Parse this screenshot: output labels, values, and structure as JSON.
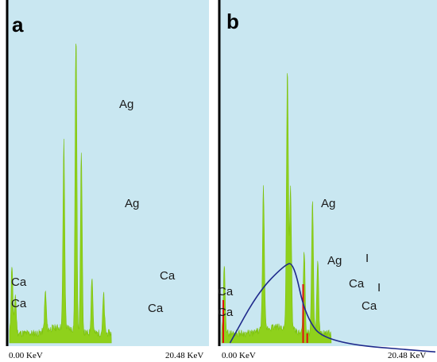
{
  "chart_data": [
    {
      "type": "area",
      "panel_label": "a",
      "x_min_label": "0.00 KeV",
      "x_max_label": "20.48 KeV",
      "xlim": [
        0,
        20.48
      ],
      "peak_labels": [
        {
          "text": "Ca",
          "energy": 3.69
        },
        {
          "text": "Ca",
          "energy": 4.01
        },
        {
          "text": "Ag",
          "energy": 2.98
        },
        {
          "text": "Ag",
          "energy": 3.15
        },
        {
          "text": "Ca",
          "energy": 3.69
        },
        {
          "text": "Ca",
          "energy": 4.01
        }
      ],
      "peaks": [
        {
          "energy": 0.25,
          "intensity": 0.23
        },
        {
          "energy": 0.6,
          "intensity": 0.13
        },
        {
          "energy": 3.7,
          "intensity": 0.13
        },
        {
          "energy": 5.6,
          "intensity": 0.62
        },
        {
          "energy": 6.85,
          "intensity": 1.0
        },
        {
          "energy": 7.4,
          "intensity": 0.6
        },
        {
          "energy": 8.5,
          "intensity": 0.19
        },
        {
          "energy": 9.7,
          "intensity": 0.13
        }
      ],
      "color": "#8fd11c"
    },
    {
      "type": "area",
      "panel_label": "b",
      "x_min_label": "0.00 KeV",
      "x_max_label": "20.48 KeV",
      "xlim": [
        0,
        20.48
      ],
      "peak_labels": [
        {
          "text": "Ca",
          "energy": 0.3
        },
        {
          "text": "Ca",
          "energy": 0.3
        },
        {
          "text": "Ag",
          "energy": 2.98
        },
        {
          "text": "Ag",
          "energy": 3.15
        },
        {
          "text": "Ca",
          "energy": 3.69
        },
        {
          "text": "I",
          "energy": 3.94
        },
        {
          "text": "I",
          "energy": 4.22
        },
        {
          "text": "Ca",
          "energy": 4.01
        }
      ],
      "peaks": [
        {
          "energy": 0.25,
          "intensity": 0.22
        },
        {
          "energy": 4.0,
          "intensity": 0.47
        },
        {
          "energy": 6.3,
          "intensity": 0.87
        },
        {
          "energy": 6.6,
          "intensity": 0.47
        },
        {
          "energy": 7.9,
          "intensity": 0.28
        },
        {
          "energy": 8.7,
          "intensity": 0.44
        },
        {
          "energy": 9.2,
          "intensity": 0.24
        }
      ],
      "background_curve": [
        {
          "energy": 0.8,
          "intensity": 0.0
        },
        {
          "energy": 3.5,
          "intensity": 0.17
        },
        {
          "energy": 6.0,
          "intensity": 0.26
        },
        {
          "energy": 6.9,
          "intensity": 0.27
        },
        {
          "energy": 8.0,
          "intensity": 0.09
        },
        {
          "energy": 10.0,
          "intensity": 0.0
        },
        {
          "energy": 20.48,
          "intensity": -0.03
        }
      ],
      "markers": [
        0.15,
        7.8,
        8.2
      ],
      "color": "#8fd11c",
      "curve_color": "#1f2a8c",
      "marker_color": "#e01010"
    }
  ]
}
